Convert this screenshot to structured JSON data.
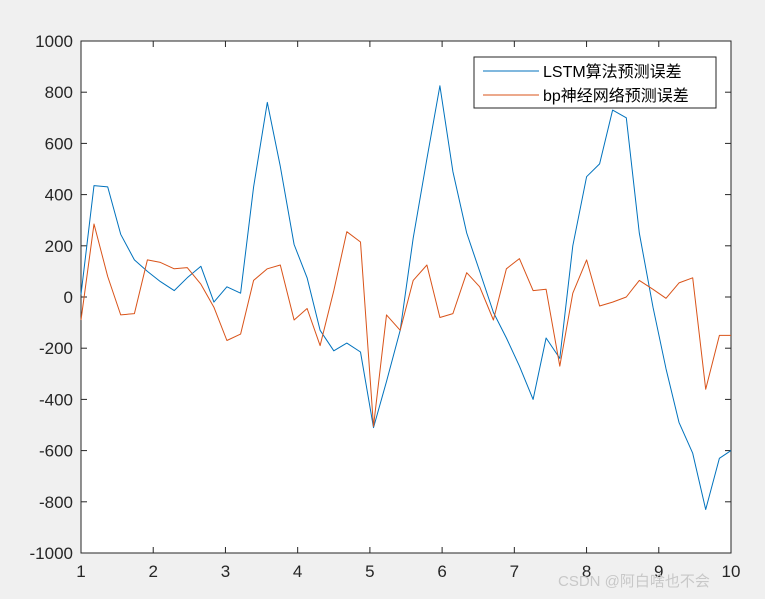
{
  "chart_data": {
    "type": "line",
    "title": "",
    "xlabel": "",
    "ylabel": "",
    "xlim": [
      1,
      10
    ],
    "ylim": [
      -1000,
      1000
    ],
    "x_ticks": [
      "1",
      "2",
      "3",
      "4",
      "5",
      "6",
      "7",
      "8",
      "9",
      "10"
    ],
    "y_ticks": [
      "1000",
      "800",
      "600",
      "400",
      "200",
      "0",
      "-200",
      "-400",
      "-600",
      "-800",
      "-1000"
    ],
    "grid": false,
    "legend_position": "top-right",
    "series": [
      {
        "name": "LSTM算法预测误差",
        "color": "#0072bd",
        "x": [
          1.0,
          1.18,
          1.37,
          1.55,
          1.74,
          1.92,
          2.1,
          2.29,
          2.47,
          2.66,
          2.84,
          3.02,
          3.21,
          3.39,
          3.58,
          3.76,
          3.95,
          4.13,
          4.31,
          4.5,
          4.68,
          4.87,
          5.05,
          5.23,
          5.42,
          5.6,
          5.79,
          5.97,
          6.15,
          6.34,
          6.52,
          6.71,
          6.89,
          7.07,
          7.26,
          7.44,
          7.63,
          7.81,
          8.0,
          8.18,
          8.36,
          8.55,
          8.73,
          8.92,
          9.1,
          9.28,
          9.47,
          9.65,
          9.84,
          10.0
        ],
        "y": [
          10,
          435,
          430,
          245,
          145,
          100,
          60,
          25,
          75,
          120,
          -20,
          40,
          15,
          430,
          760,
          510,
          205,
          75,
          -130,
          -210,
          -180,
          -215,
          -510,
          -330,
          -130,
          230,
          540,
          825,
          490,
          250,
          100,
          -60,
          -160,
          -270,
          -400,
          -160,
          -240,
          200,
          470,
          520,
          730,
          700,
          250,
          -40,
          -280,
          -490,
          -610,
          -830,
          -630,
          -600
        ]
      },
      {
        "name": "bp神经网络预测误差",
        "color": "#d95319",
        "x": [
          1.0,
          1.18,
          1.37,
          1.55,
          1.74,
          1.92,
          2.1,
          2.29,
          2.47,
          2.66,
          2.84,
          3.02,
          3.21,
          3.39,
          3.58,
          3.76,
          3.95,
          4.13,
          4.31,
          4.5,
          4.68,
          4.87,
          5.05,
          5.23,
          5.42,
          5.6,
          5.79,
          5.97,
          6.15,
          6.34,
          6.52,
          6.71,
          6.89,
          7.07,
          7.26,
          7.44,
          7.63,
          7.81,
          8.0,
          8.18,
          8.36,
          8.55,
          8.73,
          8.92,
          9.1,
          9.28,
          9.47,
          9.65,
          9.84,
          10.0
        ],
        "y": [
          -90,
          285,
          80,
          -70,
          -65,
          145,
          135,
          110,
          115,
          50,
          -40,
          -170,
          -145,
          65,
          110,
          125,
          -90,
          -45,
          -190,
          25,
          255,
          215,
          -505,
          -70,
          -130,
          65,
          125,
          -80,
          -65,
          95,
          40,
          -90,
          110,
          150,
          25,
          30,
          -270,
          15,
          145,
          -35,
          -20,
          0,
          65,
          30,
          -5,
          55,
          75,
          -360,
          -150,
          -150
        ]
      }
    ],
    "watermark": "CSDN @阿白啥也不会"
  }
}
